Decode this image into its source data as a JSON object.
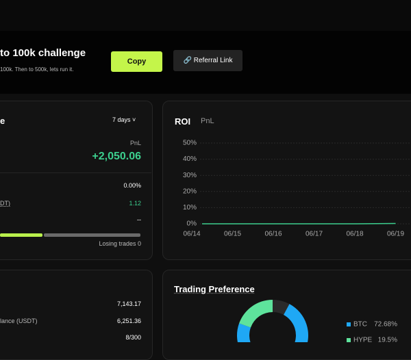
{
  "banner": {
    "title": "to 100k challenge",
    "subtitle": "100k. Then to 500k, lets run it.",
    "copy_button": "Copy",
    "referral_button": "Referral Link"
  },
  "performance_card": {
    "title": "e",
    "period": "7 days",
    "pnl_label": "PnL",
    "pnl_value": "+2,050.06",
    "row1_value": "0.00%",
    "row2_label": "DT)",
    "row2_value": "1.12",
    "row3_value": "--",
    "losing_trades": "Losing trades 0"
  },
  "roi_chart": {
    "tabs": [
      "ROI",
      "PnL"
    ],
    "x": [
      "06/14",
      "06/15",
      "06/16",
      "06/17",
      "06/18",
      "06/19"
    ],
    "values": [
      0,
      0,
      0,
      0,
      0,
      0.2
    ],
    "color": "#3ccf8e",
    "ylim": [
      0,
      50
    ],
    "yticks": [
      {
        "value": 0,
        "label": "0%"
      },
      {
        "value": 10,
        "label": "10%"
      },
      {
        "value": 20,
        "label": "20%"
      },
      {
        "value": 30,
        "label": "30%"
      },
      {
        "value": 40,
        "label": "40%"
      },
      {
        "value": 50,
        "label": "50%"
      }
    ]
  },
  "account_card": {
    "row1_value": "7,143.17",
    "row2_label": "lance (USDT)",
    "row2_value": "6,251.36",
    "row3_value": "8/300"
  },
  "trading_preference": {
    "title": "Trading Preference",
    "items": [
      {
        "name": "BTC",
        "value": 72.68,
        "label": "72.68%",
        "color": "#1fa8f5"
      },
      {
        "name": "HYPE",
        "value": 19.5,
        "label": "19.5%",
        "color": "#5ee39c"
      }
    ]
  }
}
